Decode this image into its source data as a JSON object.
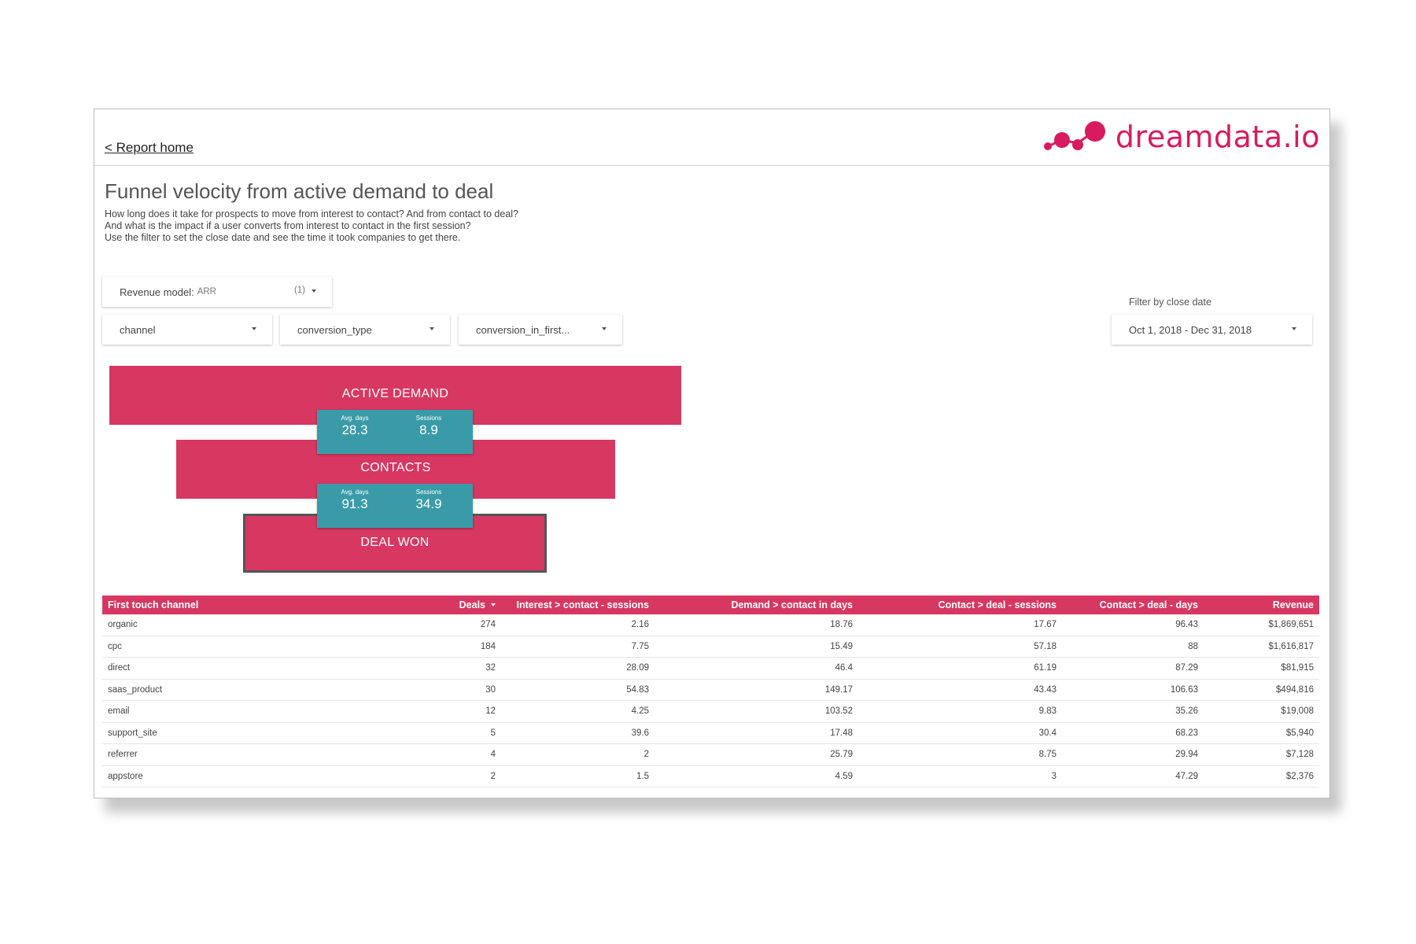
{
  "header": {
    "back_link": "< Report home",
    "logo_text": "dreamdata.io"
  },
  "page": {
    "title": "Funnel velocity from active demand to deal",
    "description": [
      "How long does it take for prospects to move from interest to contact? And from contact to deal?",
      "And what is the impact if a user converts from interest to contact in the first session?",
      "Use the filter to set the close date and see the time it took companies to get there."
    ]
  },
  "filters": {
    "revenue_model": {
      "label": "Revenue model",
      "value": "ARR",
      "count": "(1)"
    },
    "channel": "channel",
    "conversion_type": "conversion_type",
    "conversion_in_first": "conversion_in_first...",
    "close_date_label": "Filter by close date",
    "close_date_value": "Oct 1, 2018 - Dec 31, 2018"
  },
  "funnel": {
    "stages": [
      "ACTIVE DEMAND",
      "CONTACTS",
      "DEAL WON"
    ],
    "transitions": [
      {
        "avg_days_label": "Avg. days",
        "avg_days": "28.3",
        "sessions_label": "Sessions",
        "sessions": "8.9"
      },
      {
        "avg_days_label": "Avg. days",
        "avg_days": "91.3",
        "sessions_label": "Sessions",
        "sessions": "34.9"
      }
    ]
  },
  "table": {
    "columns": [
      "First touch channel",
      "Deals",
      "Interest > contact - sessions",
      "Demand > contact in days",
      "Contact > deal - sessions",
      "Contact > deal - days",
      "Revenue"
    ],
    "rows": [
      [
        "organic",
        "274",
        "2.16",
        "18.76",
        "17.67",
        "96.43",
        "$1,869,651"
      ],
      [
        "cpc",
        "184",
        "7.75",
        "15.49",
        "57.18",
        "88",
        "$1,616,817"
      ],
      [
        "direct",
        "32",
        "28.09",
        "46.4",
        "61.19",
        "87.29",
        "$81,915"
      ],
      [
        "saas_product",
        "30",
        "54.83",
        "149.17",
        "43.43",
        "106.63",
        "$494,816"
      ],
      [
        "email",
        "12",
        "4.25",
        "103.52",
        "9.83",
        "35.26",
        "$19,008"
      ],
      [
        "support_site",
        "5",
        "39.6",
        "17.48",
        "30.4",
        "68.23",
        "$5,940"
      ],
      [
        "referrer",
        "4",
        "2",
        "25.79",
        "8.75",
        "29.94",
        "$7,128"
      ],
      [
        "appstore",
        "2",
        "1.5",
        "4.59",
        "3",
        "47.29",
        "$2,376"
      ]
    ]
  },
  "colors": {
    "accent": "#d63862",
    "metric_box": "#3a9ba8",
    "logo": "#d81b60"
  }
}
